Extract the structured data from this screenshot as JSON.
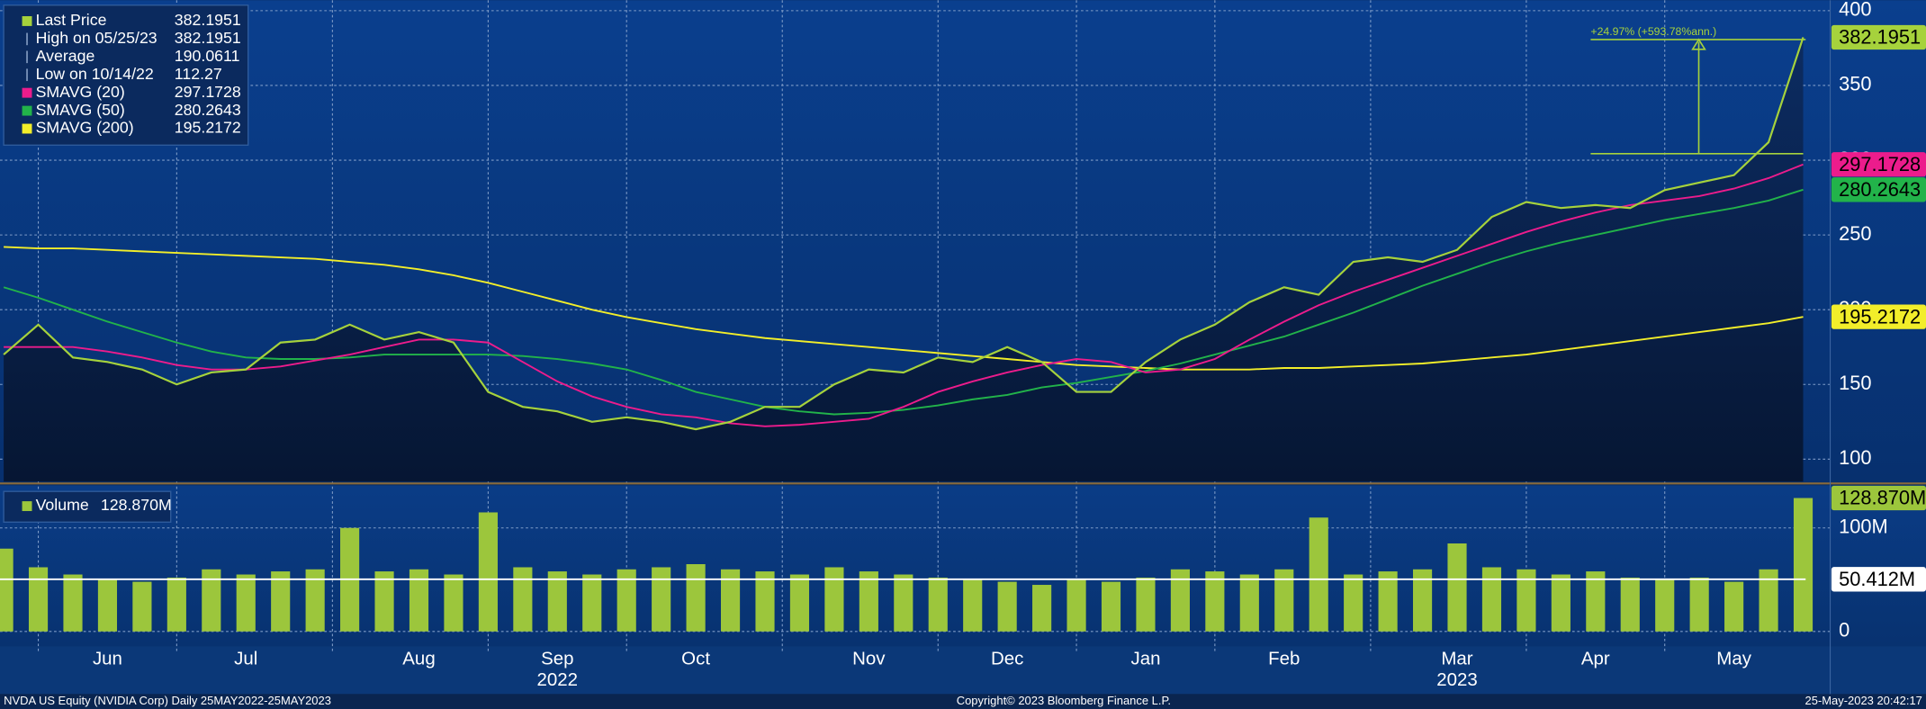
{
  "footer": {
    "left": "NVDA US Equity (NVIDIA Corp)  Daily 25MAY2022-25MAY2023",
    "center": "Copyright© 2023 Bloomberg Finance L.P.",
    "right": "25-May-2023 20:42:17"
  },
  "chart_data": [
    {
      "type": "line",
      "categories": [
        null,
        null,
        null,
        "Jun",
        null,
        null,
        null,
        "Jul",
        null,
        null,
        null,
        null,
        "Aug",
        null,
        null,
        null,
        "Sep",
        null,
        null,
        null,
        "Oct",
        null,
        null,
        null,
        null,
        "Nov",
        null,
        null,
        null,
        "Dec",
        null,
        null,
        null,
        "Jan",
        null,
        null,
        null,
        "Feb",
        null,
        null,
        null,
        null,
        "Mar",
        null,
        null,
        null,
        "Apr",
        null,
        null,
        null,
        "May",
        null,
        null
      ],
      "years": [
        null,
        null,
        null,
        null,
        null,
        null,
        null,
        null,
        null,
        null,
        null,
        null,
        null,
        null,
        null,
        null,
        "2022",
        null,
        null,
        null,
        null,
        null,
        null,
        null,
        null,
        null,
        null,
        null,
        null,
        null,
        null,
        null,
        null,
        null,
        null,
        null,
        null,
        null,
        null,
        null,
        null,
        null,
        "2023",
        null,
        null,
        null,
        null,
        null,
        null,
        null,
        null,
        null,
        null
      ],
      "series": [
        {
          "name": "Last Price",
          "color": "#a6d23c",
          "values": [
            170,
            190,
            168,
            165,
            160,
            150,
            158,
            160,
            178,
            180,
            190,
            180,
            185,
            178,
            145,
            135,
            132,
            125,
            128,
            125,
            120,
            125,
            135,
            135,
            150,
            160,
            158,
            168,
            165,
            175,
            165,
            145,
            145,
            165,
            180,
            190,
            205,
            215,
            210,
            232,
            235,
            232,
            240,
            262,
            272,
            268,
            270,
            268,
            280,
            285,
            290,
            312,
            382.1951
          ]
        },
        {
          "name": "SMAVG (20)",
          "color": "#ec1c8c",
          "values": [
            175,
            175,
            175,
            172,
            168,
            163,
            160,
            160,
            162,
            166,
            170,
            175,
            180,
            180,
            178,
            165,
            152,
            142,
            135,
            130,
            128,
            124,
            122,
            123,
            125,
            127,
            135,
            145,
            152,
            158,
            163,
            167,
            165,
            158,
            160,
            167,
            180,
            192,
            203,
            212,
            220,
            228,
            236,
            244,
            252,
            259,
            265,
            270,
            273,
            276,
            281,
            288,
            297.1728
          ]
        },
        {
          "name": "SMAVG (50)",
          "color": "#22b34a",
          "values": [
            215,
            208,
            200,
            192,
            185,
            178,
            172,
            168,
            167,
            167,
            168,
            170,
            170,
            170,
            170,
            169,
            167,
            164,
            160,
            153,
            145,
            140,
            135,
            132,
            130,
            131,
            133,
            136,
            140,
            143,
            148,
            151,
            155,
            159,
            164,
            170,
            176,
            182,
            190,
            198,
            207,
            216,
            224,
            232,
            239,
            245,
            250,
            255,
            260,
            264,
            268,
            273,
            280.2643
          ]
        },
        {
          "name": "SMAVG (200)",
          "color": "#f2ee2a",
          "values": [
            242,
            241,
            241,
            240,
            239,
            238,
            237,
            236,
            235,
            234,
            232,
            230,
            227,
            223,
            218,
            212,
            206,
            200,
            195,
            191,
            187,
            184,
            181,
            179,
            177,
            175,
            173,
            171,
            169,
            167,
            165,
            163,
            162,
            161,
            160,
            160,
            160,
            161,
            161,
            162,
            163,
            164,
            166,
            168,
            170,
            173,
            176,
            179,
            182,
            185,
            188,
            191,
            195.2172
          ]
        }
      ],
      "stats": [
        {
          "name": "High on 05/25/23",
          "value": 382.1951
        },
        {
          "name": "Average",
          "value": 190.0611
        },
        {
          "name": "Low on 10/14/22",
          "value": 112.27
        }
      ],
      "annotation": "+24.97% (+593.78%ann.)",
      "ylim": [
        85,
        407
      ],
      "yticks": [
        100,
        150,
        200,
        250,
        300,
        350,
        400
      ],
      "grid": true
    },
    {
      "type": "bar",
      "series": [
        {
          "name": "Volume",
          "color": "#9cc63c",
          "label": "128.870M",
          "values": [
            80,
            62,
            55,
            50,
            48,
            52,
            60,
            55,
            58,
            60,
            100,
            58,
            60,
            55,
            115,
            62,
            58,
            55,
            60,
            62,
            65,
            60,
            58,
            55,
            62,
            58,
            55,
            52,
            50,
            48,
            45,
            50,
            48,
            52,
            60,
            58,
            55,
            60,
            110,
            55,
            58,
            60,
            85,
            62,
            60,
            55,
            58,
            52,
            50,
            52,
            48,
            60,
            128.87
          ]
        }
      ],
      "average": {
        "value": 50.412,
        "label": "50.412M"
      },
      "ylim": [
        -13,
        140
      ],
      "yticks": [
        0,
        {
          "value": 100,
          "label": "100M"
        }
      ],
      "grid": true
    }
  ]
}
